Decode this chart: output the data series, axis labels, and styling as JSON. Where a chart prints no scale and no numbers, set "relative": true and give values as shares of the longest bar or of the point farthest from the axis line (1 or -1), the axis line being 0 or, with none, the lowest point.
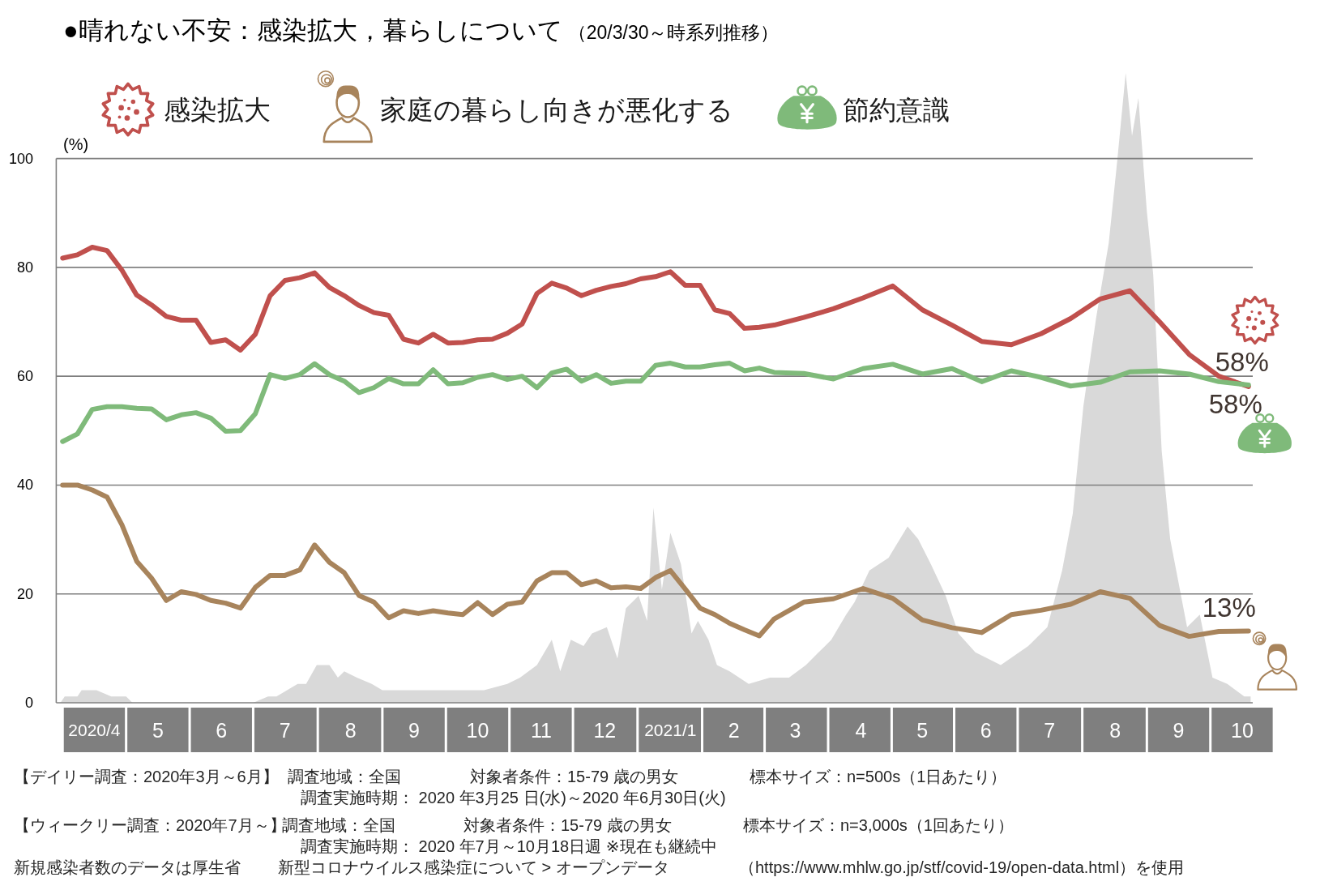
{
  "chart_data": [
    {
      "type": "line",
      "title": "●晴れない不安：感染拡大，暮らしについて",
      "subtitle": "（20/3/30～時系列推移）",
      "ylabel": "(%)",
      "x": [
        "2020-03-30",
        "2020-04-06",
        "2020-04-13",
        "2020-04-20",
        "2020-04-27",
        "2020-05-04",
        "2020-05-11",
        "2020-05-18",
        "2020-05-25",
        "2020-06-01",
        "2020-06-08",
        "2020-06-15",
        "2020-06-22",
        "2020-06-29",
        "2020-07-06",
        "2020-07-13",
        "2020-07-20",
        "2020-07-27",
        "2020-08-03",
        "2020-08-10",
        "2020-08-17",
        "2020-08-24",
        "2020-08-31",
        "2020-09-07",
        "2020-09-14",
        "2020-09-21",
        "2020-09-28",
        "2020-10-05",
        "2020-10-12",
        "2020-10-19",
        "2020-10-26",
        "2020-11-02",
        "2020-11-09",
        "2020-11-16",
        "2020-11-23",
        "2020-11-30",
        "2020-12-07",
        "2020-12-14",
        "2020-12-21",
        "2020-12-28",
        "2021-01-04",
        "2021-01-11",
        "2021-01-18",
        "2021-01-25",
        "2021-02-01",
        "2021-02-08",
        "2021-02-15",
        "2021-02-22",
        "2021-03-01",
        "2021-03-15",
        "2021-03-29",
        "2021-04-12",
        "2021-04-26",
        "2021-05-10",
        "2021-05-24",
        "2021-06-07",
        "2021-06-21",
        "2021-07-05",
        "2021-07-19",
        "2021-08-02",
        "2021-08-16",
        "2021-08-30",
        "2021-09-13",
        "2021-09-27",
        "2021-10-11"
      ],
      "xlim": [
        "2020-03-27",
        "2021-10-13"
      ],
      "xticks": [
        {
          "value": "2020-04-14",
          "label": "2020/4"
        },
        {
          "value": "2020-05-14",
          "label": "5"
        },
        {
          "value": "2020-06-13",
          "label": "6"
        },
        {
          "value": "2020-07-13",
          "label": "7"
        },
        {
          "value": "2020-08-13",
          "label": "8"
        },
        {
          "value": "2020-09-12",
          "label": "9"
        },
        {
          "value": "2020-10-12",
          "label": "10"
        },
        {
          "value": "2020-11-11",
          "label": "11"
        },
        {
          "value": "2020-12-11",
          "label": "12"
        },
        {
          "value": "2021-01-11",
          "label": "2021/1"
        },
        {
          "value": "2021-02-10",
          "label": "2"
        },
        {
          "value": "2021-03-11",
          "label": "3"
        },
        {
          "value": "2021-04-11",
          "label": "4"
        },
        {
          "value": "2021-05-10",
          "label": "5"
        },
        {
          "value": "2021-06-09",
          "label": "6"
        },
        {
          "value": "2021-07-09",
          "label": "7"
        },
        {
          "value": "2021-08-09",
          "label": "8"
        },
        {
          "value": "2021-09-08",
          "label": "9"
        },
        {
          "value": "2021-10-08",
          "label": "10"
        }
      ],
      "ylim": [
        0,
        100
      ],
      "yticks": [
        0,
        20,
        40,
        60,
        80,
        100
      ],
      "grid": "y",
      "legend": "top",
      "series": [
        {
          "name": "感染拡大",
          "color": "#c0504d",
          "values": [
            81.7,
            82.3,
            83.7,
            83.1,
            79.5,
            74.9,
            73.1,
            71.0,
            70.3,
            70.3,
            66.2,
            66.7,
            64.8,
            67.7,
            74.8,
            77.6,
            78.1,
            79.0,
            76.3,
            74.8,
            73.0,
            71.7,
            71.2,
            66.8,
            66.1,
            67.7,
            66.1,
            66.2,
            66.7,
            66.8,
            67.9,
            69.6,
            75.2,
            77.1,
            76.2,
            74.8,
            75.8,
            76.5,
            77.0,
            77.9,
            78.3,
            79.2,
            76.7,
            76.7,
            72.2,
            71.5,
            68.8,
            69.0,
            69.4,
            70.8,
            72.4,
            74.4,
            76.6,
            72.2,
            69.4,
            66.4,
            65.8,
            67.8,
            70.6,
            74.2,
            75.7,
            70.0,
            64.0,
            60.0,
            58.1
          ],
          "value_labels": [
            null,
            null,
            null,
            null,
            null,
            null,
            null,
            null,
            null,
            null,
            null,
            null,
            null,
            null,
            null,
            null,
            null,
            null,
            null,
            null,
            null,
            null,
            null,
            null,
            null,
            null,
            null,
            null,
            null,
            null,
            null,
            null,
            null,
            null,
            null,
            null,
            null,
            null,
            null,
            null,
            null,
            null,
            null,
            null,
            null,
            null,
            null,
            null,
            null,
            null,
            null,
            null,
            null,
            null,
            null,
            null,
            null,
            null,
            null,
            null,
            null,
            null,
            null,
            null,
            "58%"
          ]
        },
        {
          "name": "家庭の暮らし向きが悪化する",
          "color": "#a8845c",
          "values": [
            40.0,
            40.0,
            39.1,
            37.8,
            32.7,
            26.0,
            22.9,
            18.8,
            20.4,
            19.9,
            18.8,
            18.3,
            17.4,
            21.2,
            23.4,
            23.4,
            24.4,
            29.0,
            25.8,
            23.9,
            19.7,
            18.5,
            15.6,
            16.9,
            16.4,
            16.9,
            16.5,
            16.2,
            18.4,
            16.2,
            18.1,
            18.5,
            22.4,
            23.9,
            23.9,
            21.7,
            22.4,
            21.1,
            21.3,
            21.0,
            23.0,
            24.3,
            20.9,
            17.4,
            16.2,
            14.6,
            13.4,
            12.3,
            15.4,
            18.5,
            19.1,
            21.0,
            19.2,
            15.2,
            13.8,
            12.9,
            16.2,
            17.0,
            18.1,
            20.4,
            19.2,
            14.2,
            12.2,
            13.1,
            13.2
          ],
          "value_labels": [
            null,
            null,
            null,
            null,
            null,
            null,
            null,
            null,
            null,
            null,
            null,
            null,
            null,
            null,
            null,
            null,
            null,
            null,
            null,
            null,
            null,
            null,
            null,
            null,
            null,
            null,
            null,
            null,
            null,
            null,
            null,
            null,
            null,
            null,
            null,
            null,
            null,
            null,
            null,
            null,
            null,
            null,
            null,
            null,
            null,
            null,
            null,
            null,
            null,
            null,
            null,
            null,
            null,
            null,
            null,
            null,
            null,
            null,
            null,
            null,
            null,
            null,
            null,
            null,
            "13%"
          ]
        },
        {
          "name": "節約意識",
          "color": "#7fba7a",
          "values": [
            48.0,
            49.4,
            53.9,
            54.4,
            54.4,
            54.1,
            54.0,
            52.0,
            52.9,
            53.3,
            52.3,
            49.9,
            50.0,
            53.1,
            60.3,
            59.6,
            60.3,
            62.3,
            60.3,
            59.1,
            57.0,
            57.9,
            59.6,
            58.6,
            58.6,
            61.2,
            58.6,
            58.8,
            59.8,
            60.3,
            59.4,
            60.0,
            57.9,
            60.6,
            61.3,
            59.1,
            60.3,
            58.7,
            59.1,
            59.1,
            62.0,
            62.4,
            61.7,
            61.7,
            62.1,
            62.4,
            61.0,
            61.5,
            60.7,
            60.5,
            59.5,
            61.4,
            62.2,
            60.4,
            61.4,
            59.0,
            61.0,
            59.8,
            58.2,
            58.9,
            60.8,
            61.0,
            60.4,
            59.0,
            58.4
          ],
          "value_labels": [
            null,
            null,
            null,
            null,
            null,
            null,
            null,
            null,
            null,
            null,
            null,
            null,
            null,
            null,
            null,
            null,
            null,
            null,
            null,
            null,
            null,
            null,
            null,
            null,
            null,
            null,
            null,
            null,
            null,
            null,
            null,
            null,
            null,
            null,
            null,
            null,
            null,
            null,
            null,
            null,
            null,
            null,
            null,
            null,
            null,
            null,
            null,
            null,
            null,
            null,
            null,
            null,
            null,
            null,
            null,
            null,
            null,
            null,
            null,
            null,
            null,
            null,
            null,
            null,
            "58%"
          ]
        }
      ],
      "annotations": [
        "【デイリー調査：2020年3月～6月】",
        "調査地域：全国",
        "対象者条件：15-79 歳の男女",
        "標本サイズ：n=500s（1日あたり）",
        "調査実施時期： 2020 年3月25 日(水)～2020 年6月30日(火)",
        "【ウィークリー調査：2020年7月～】",
        "調査地域：全国",
        "対象者条件：15-79 歳の男女",
        "標本サイズ：n=3,000s（1回あたり）",
        "調査実施時期： 2020 年7月～10月18日週 ※現在も継続中",
        "新規感染者数のデータは厚生省",
        "新型コロナウイルス感染症について > オープンデータ",
        "（https://www.mhlw.go.jp/stf/covid-19/open-data.html）を使用"
      ]
    },
    {
      "type": "area",
      "relative": true,
      "color": "#d9d9d9",
      "xlim": [
        "2020-03-27",
        "2021-10-13"
      ],
      "x": [
        "2020-03-29",
        "2020-03-31",
        "2020-04-06",
        "2020-04-08",
        "2020-04-15",
        "2020-04-22",
        "2020-04-29",
        "2020-05-02",
        "2020-06-28",
        "2020-07-05",
        "2020-07-09",
        "2020-07-14",
        "2020-07-19",
        "2020-07-23",
        "2020-07-28",
        "2020-08-03",
        "2020-08-07",
        "2020-08-10",
        "2020-08-16",
        "2020-08-23",
        "2020-08-28",
        "2020-09-04",
        "2020-09-15",
        "2020-09-21",
        "2020-10-01",
        "2020-10-04",
        "2020-10-15",
        "2020-10-26",
        "2020-11-01",
        "2020-11-09",
        "2020-11-16",
        "2020-11-20",
        "2020-11-25",
        "2020-12-01",
        "2020-12-05",
        "2020-12-12",
        "2020-12-17",
        "2020-12-21",
        "2020-12-27",
        "2020-12-31",
        "2021-01-03",
        "2021-01-07",
        "2021-01-11",
        "2021-01-16",
        "2021-01-21",
        "2021-01-24",
        "2021-01-29",
        "2021-02-02",
        "2021-02-08",
        "2021-02-17",
        "2021-02-27",
        "2021-03-08",
        "2021-03-16",
        "2021-03-22",
        "2021-03-28",
        "2021-04-04",
        "2021-04-08",
        "2021-04-15",
        "2021-04-24",
        "2021-05-03",
        "2021-05-08",
        "2021-05-14",
        "2021-05-21",
        "2021-05-27",
        "2021-06-04",
        "2021-06-16",
        "2021-06-29",
        "2021-07-08",
        "2021-07-15",
        "2021-07-20",
        "2021-07-25",
        "2021-07-31",
        "2021-08-06",
        "2021-08-10",
        "2021-08-14",
        "2021-08-17",
        "2021-08-20",
        "2021-08-24",
        "2021-08-27",
        "2021-08-31",
        "2021-09-04",
        "2021-09-08",
        "2021-09-12",
        "2021-09-18",
        "2021-09-24",
        "2021-10-01",
        "2021-10-09",
        "2021-10-12"
      ],
      "values": [
        0,
        0.01,
        0.01,
        0.02,
        0.02,
        0.01,
        0.01,
        0,
        0,
        0.01,
        0.01,
        0.02,
        0.03,
        0.03,
        0.06,
        0.06,
        0.04,
        0.05,
        0.04,
        0.03,
        0.02,
        0.02,
        0.02,
        0.02,
        0.02,
        0.02,
        0.02,
        0.03,
        0.04,
        0.06,
        0.1,
        0.05,
        0.1,
        0.09,
        0.11,
        0.12,
        0.07,
        0.15,
        0.17,
        0.13,
        0.31,
        0.18,
        0.27,
        0.22,
        0.11,
        0.13,
        0.1,
        0.06,
        0.05,
        0.03,
        0.04,
        0.04,
        0.06,
        0.08,
        0.1,
        0.14,
        0.16,
        0.21,
        0.23,
        0.28,
        0.26,
        0.22,
        0.17,
        0.11,
        0.08,
        0.06,
        0.09,
        0.12,
        0.21,
        0.3,
        0.47,
        0.61,
        0.73,
        0.86,
        1,
        0.9,
        0.96,
        0.78,
        0.68,
        0.4,
        0.26,
        0.19,
        0.12,
        0.14,
        0.04,
        0.03,
        0.01,
        0.01
      ]
    }
  ]
}
